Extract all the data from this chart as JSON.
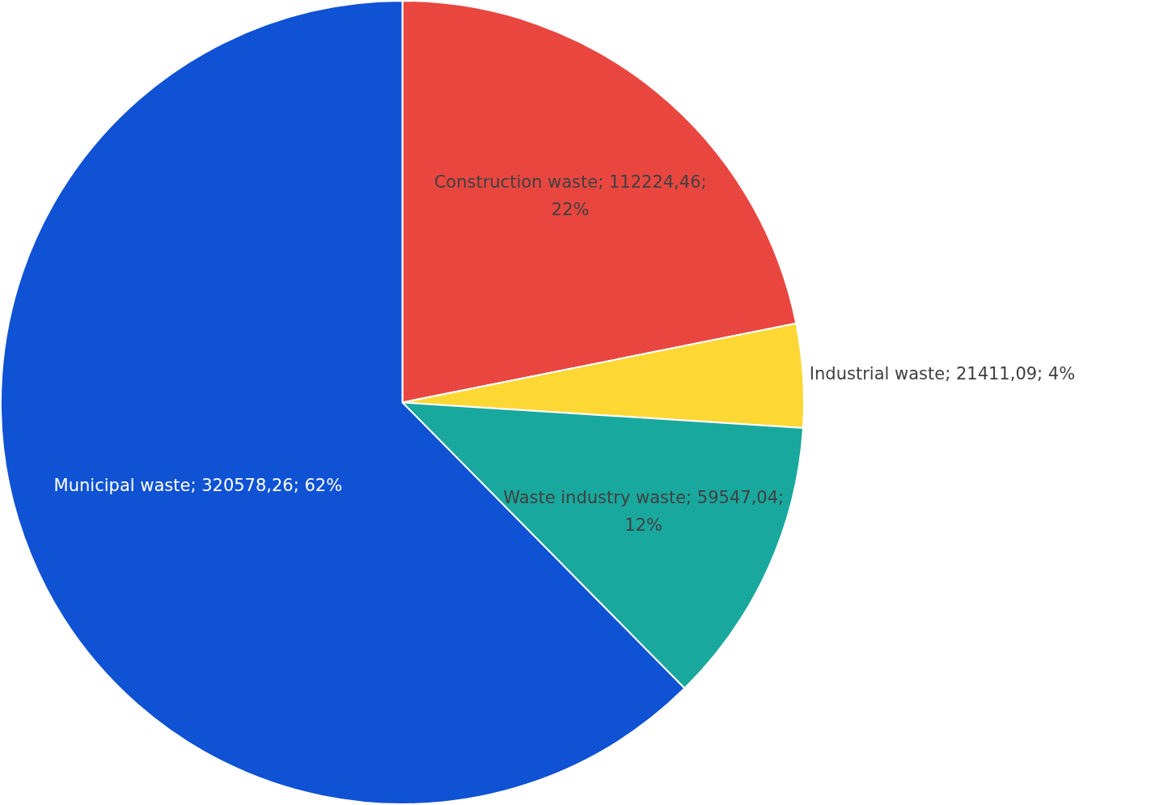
{
  "chart_data": {
    "type": "pie",
    "categories": [
      "Construction waste",
      "Industrial waste",
      "Waste industry waste",
      "Municipal waste"
    ],
    "values": [
      112224.46,
      21411.09,
      59547.04,
      320578.26
    ],
    "colors": [
      "#e94640",
      "#fdd835",
      "#19a89d",
      "#0f52d4"
    ],
    "value_labels": [
      "112224,46; 22%",
      "21411,09; 4%",
      "59547,04; 12%",
      "320578,26; 62%"
    ],
    "legend": false
  }
}
